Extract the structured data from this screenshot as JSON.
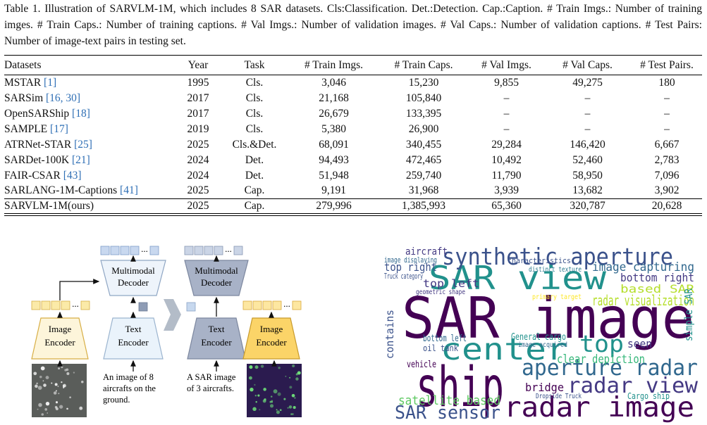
{
  "caption": "Table 1. Illustration of SARVLM-1M, which includes 8 SAR datasets. Cls:Classification. Det.:Detection. Cap.:Caption. # Train Imgs.: Number of training imges. # Train Caps.: Number of training captions. # Val Imgs.: Number of validation images. # Val Caps.: Number of validation captions. # Test Pairs: Number of image-text pairs in testing set.",
  "table": {
    "header": [
      "Datasets",
      "Year",
      "Task",
      "# Train Imgs.",
      "# Train Caps.",
      "# Val Imgs.",
      "# Val Caps.",
      "# Test Pairs."
    ],
    "rows": [
      {
        "dataset": "MSTAR ",
        "cite": "[1]",
        "cells": [
          "1995",
          "Cls.",
          "3,046",
          "15,230",
          "9,855",
          "49,275",
          "180"
        ]
      },
      {
        "dataset": "SARSim ",
        "cite": "[16, 30]",
        "cells": [
          "2017",
          "Cls.",
          "21,168",
          "105,840",
          "–",
          "–",
          "–"
        ]
      },
      {
        "dataset": "OpenSARShip ",
        "cite": "[18]",
        "cells": [
          "2017",
          "Cls.",
          "26,679",
          "133,395",
          "–",
          "–",
          "–"
        ]
      },
      {
        "dataset": "SAMPLE ",
        "cite": "[17]",
        "cells": [
          "2019",
          "Cls.",
          "5,380",
          "26,900",
          "–",
          "–",
          "–"
        ]
      },
      {
        "dataset": "ATRNet-STAR ",
        "cite": "[25]",
        "cells": [
          "2025",
          "Cls.&Det.",
          "68,091",
          "340,455",
          "29,284",
          "146,420",
          "6,667"
        ]
      },
      {
        "dataset": "SARDet-100K ",
        "cite": "[21]",
        "cells": [
          "2024",
          "Det.",
          "94,493",
          "472,465",
          "10,492",
          "52,460",
          "2,783"
        ]
      },
      {
        "dataset": "FAIR-CSAR ",
        "cite": "[43]",
        "cells": [
          "2024",
          "Det.",
          "51,948",
          "259,740",
          "11,790",
          "58,950",
          "7,096"
        ]
      },
      {
        "dataset": "SARLANG-1M-Captions ",
        "cite": "[41]",
        "cells": [
          "2025",
          "Cap.",
          "9,191",
          "31,968",
          "3,939",
          "13,682",
          "3,902"
        ]
      },
      {
        "dataset": "SARVLM-1M(ours)",
        "cite": "",
        "cells": [
          "2025",
          "Cap.",
          "279,996",
          "1,385,993",
          "65,360",
          "320,787",
          "20,628"
        ]
      }
    ]
  },
  "figure": {
    "left": {
      "decoder": [
        "Multimodal",
        "Decoder"
      ],
      "text_encoder": [
        "Text",
        "Encoder"
      ],
      "image_encoder": [
        "Image",
        "Encoder"
      ],
      "caption": [
        "An image of 8",
        "aircrafts on the",
        "ground."
      ]
    },
    "right": {
      "decoder": [
        "Multimodal",
        "Decoder"
      ],
      "text_encoder": [
        "Text",
        "Encoder"
      ],
      "image_encoder": [
        "Image",
        "Encoder"
      ],
      "caption": [
        "A SAR image",
        "of 3 aircrafts."
      ]
    },
    "ellipses": [
      "...",
      "...",
      "...",
      "..."
    ]
  },
  "wordcloud": {
    "words": [
      "SAR image",
      "ship",
      "SAR view",
      "synthetic aperture",
      "center",
      "aperture radar",
      "radar image",
      "radar view",
      "top",
      "SAR sensor",
      "satellite based",
      "radar visualization",
      "image capturing",
      "bottom right",
      "based SAR",
      "top right",
      "top left",
      "clear depiction",
      "bridge",
      "Cargo ship",
      "bottom left",
      "oil tank",
      "vehicle",
      "aircraft",
      "contains",
      "simple SAR",
      "seen",
      "General cargo",
      "Truck category",
      "image displaying",
      "characteristics",
      "distinct texture",
      "primary target",
      "geometric shape",
      "image acquired",
      "Dropside Truck"
    ]
  }
}
